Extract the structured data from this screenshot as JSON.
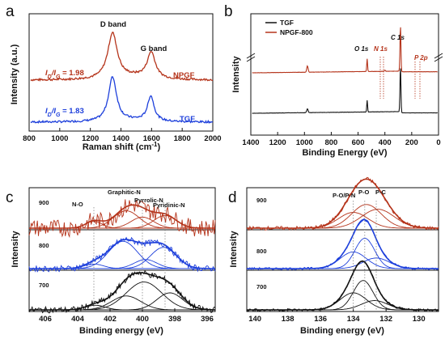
{
  "chart_data": [
    {
      "panel": "a",
      "type": "line",
      "xlabel": "Raman shift (cm",
      "xlabel_sup": "-1",
      "xlabel_end": ")",
      "ylabel": "Intensity (a.u.)",
      "xlim": [
        800,
        2000
      ],
      "xticks": [
        "800",
        "1000",
        "1200",
        "1400",
        "1600",
        "1800",
        "2000"
      ],
      "annotations": {
        "d_band": "D band",
        "g_band": "G band"
      },
      "series": [
        {
          "name": "NPGF",
          "color": "#b5341b",
          "ratio_label": "I",
          "ratio_sub": "D",
          "ratio_mid": "/I",
          "ratio_sub2": "G",
          "ratio_value": " = 1.98"
        },
        {
          "name": "TGF",
          "color": "#1d3fdb",
          "ratio_label": "I",
          "ratio_sub": "D",
          "ratio_mid": "/I",
          "ratio_sub2": "G",
          "ratio_value": " = 1.83"
        }
      ]
    },
    {
      "panel": "b",
      "type": "line",
      "xlabel": "Binding Energy (eV)",
      "ylabel": "Intensity",
      "xlim": [
        1400,
        0
      ],
      "xticks": [
        "1400",
        "1200",
        "1000",
        "800",
        "600",
        "400",
        "200",
        "0"
      ],
      "peaks": {
        "o1s": "O 1s",
        "n1s": "N 1s",
        "c1s": "C 1s",
        "p2p": "P 2p"
      },
      "series": [
        {
          "name": "TGF",
          "color": "#111111"
        },
        {
          "name": "NPGF-800",
          "color": "#b5341b"
        }
      ]
    },
    {
      "panel": "c",
      "type": "line",
      "xlabel": "Binding energy (eV)",
      "ylabel": "Intensity",
      "xlim": [
        407,
        395.5
      ],
      "xticks": [
        "406",
        "404",
        "402",
        "400",
        "398",
        "396"
      ],
      "components": {
        "no": "N-O",
        "graphitic": "Graphitic-N",
        "pyrrolic": "Pyrrolic-N",
        "pyridinic": "Pyridinic-N"
      },
      "series": [
        {
          "name": "900",
          "color": "#b5341b"
        },
        {
          "name": "800",
          "color": "#1d3fdb"
        },
        {
          "name": "700",
          "color": "#111111"
        }
      ]
    },
    {
      "panel": "d",
      "type": "line",
      "xlabel": "Binding energy (eV)",
      "ylabel": "Intensity",
      "xlim": [
        140.5,
        128.8
      ],
      "xticks": [
        "140",
        "138",
        "136",
        "134",
        "132",
        "130"
      ],
      "components": {
        "pop": "P-O/P-N",
        "po": "P-O",
        "pc": "P-C"
      },
      "series": [
        {
          "name": "900",
          "color": "#b5341b"
        },
        {
          "name": "800",
          "color": "#1d3fdb"
        },
        {
          "name": "700",
          "color": "#111111"
        }
      ]
    }
  ]
}
